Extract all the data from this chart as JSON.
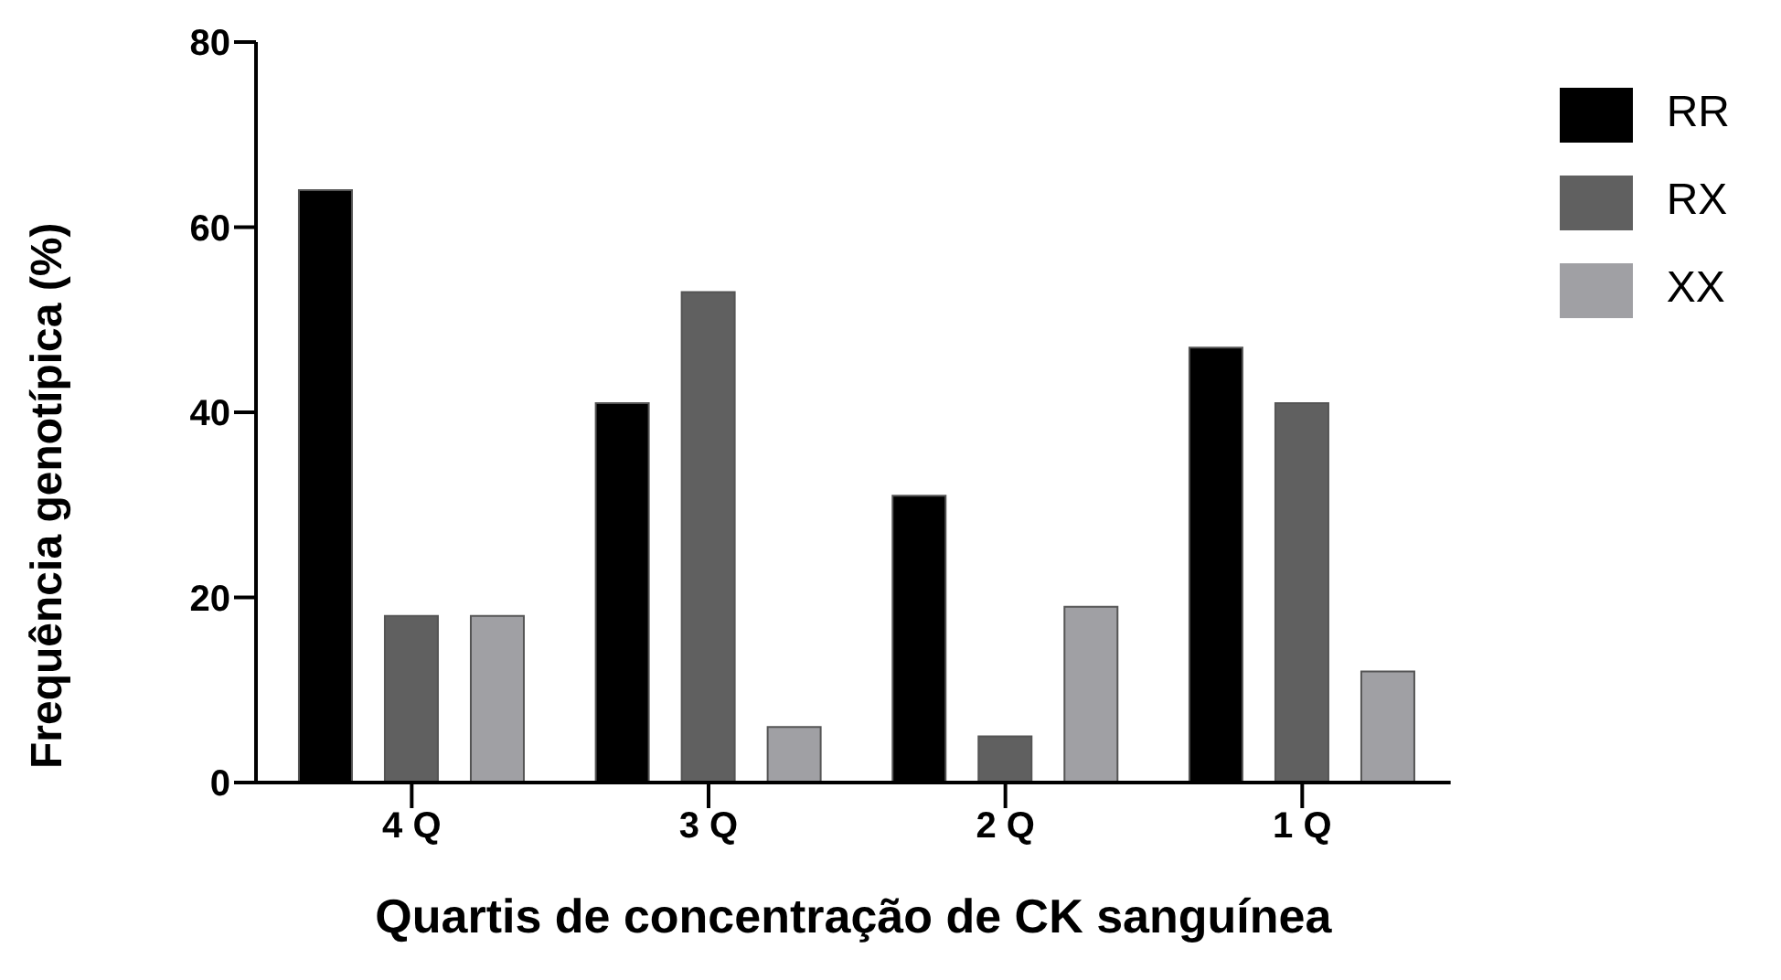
{
  "chart_data": {
    "type": "bar",
    "xlabel": "Quartis de concentração de CK sanguínea",
    "ylabel": "Frequência genotípica  (%)",
    "categories": [
      "4 Q",
      "3 Q",
      "2 Q",
      "1 Q"
    ],
    "series": [
      {
        "name": "RR",
        "color": "#000000",
        "values": [
          64,
          41,
          31,
          47
        ]
      },
      {
        "name": "RX",
        "color": "#606060",
        "values": [
          18,
          53,
          5,
          41
        ]
      },
      {
        "name": "XX",
        "color": "#a0a0a4",
        "values": [
          18,
          6,
          19,
          12
        ]
      }
    ],
    "ylim": [
      0,
      80
    ],
    "yticks": [
      0,
      20,
      40,
      60,
      80
    ],
    "grid": false,
    "legend": "top right"
  }
}
